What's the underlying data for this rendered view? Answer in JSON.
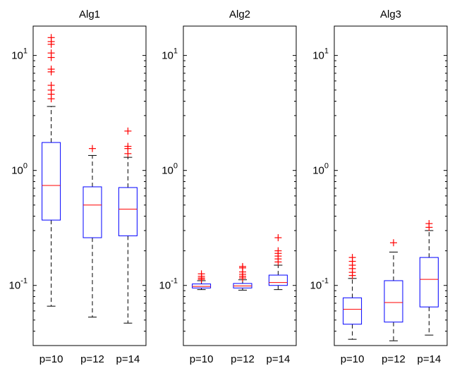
{
  "chart_data": [
    {
      "type": "boxplot",
      "title": "Alg1",
      "yscale": "log",
      "ylim": [
        0.03,
        18
      ],
      "yticks": [
        {
          "base": "10",
          "exp": "-1"
        },
        {
          "base": "10",
          "exp": "0"
        },
        {
          "base": "10",
          "exp": "1"
        }
      ],
      "categories": [
        "p=10",
        "p=12",
        "p=14"
      ],
      "boxes": [
        {
          "whisker_low": 0.066,
          "q1": 0.37,
          "median": 0.74,
          "q3": 1.75,
          "whisker_high": 3.6,
          "outliers": [
            4.2,
            4.6,
            5.0,
            5.5,
            7.2,
            7.6,
            9.6,
            10.5,
            12.5,
            13.2,
            14.3
          ]
        },
        {
          "whisker_low": 0.053,
          "q1": 0.26,
          "median": 0.5,
          "q3": 0.72,
          "whisker_high": 1.35,
          "outliers": [
            1.55
          ]
        },
        {
          "whisker_low": 0.047,
          "q1": 0.27,
          "median": 0.46,
          "q3": 0.71,
          "whisker_high": 1.3,
          "outliers": [
            1.4,
            1.55,
            1.62,
            2.2
          ]
        }
      ]
    },
    {
      "type": "boxplot",
      "title": "Alg2",
      "yscale": "log",
      "ylim": [
        0.03,
        18
      ],
      "yticks": [
        {
          "base": "10",
          "exp": "-1"
        },
        {
          "base": "10",
          "exp": "0"
        },
        {
          "base": "10",
          "exp": "1"
        }
      ],
      "categories": [
        "p=10",
        "p=12",
        "p=14"
      ],
      "boxes": [
        {
          "whisker_low": 0.092,
          "q1": 0.095,
          "median": 0.098,
          "q3": 0.103,
          "whisker_high": 0.11,
          "outliers": [
            0.113,
            0.116,
            0.12,
            0.126
          ]
        },
        {
          "whisker_low": 0.091,
          "q1": 0.095,
          "median": 0.099,
          "q3": 0.104,
          "whisker_high": 0.112,
          "outliers": [
            0.116,
            0.12,
            0.125,
            0.131,
            0.142,
            0.146
          ]
        },
        {
          "whisker_low": 0.092,
          "q1": 0.1,
          "median": 0.106,
          "q3": 0.123,
          "whisker_high": 0.15,
          "outliers": [
            0.16,
            0.17,
            0.18,
            0.19,
            0.2,
            0.26
          ]
        }
      ]
    },
    {
      "type": "boxplot",
      "title": "Alg3",
      "yscale": "log",
      "ylim": [
        0.03,
        18
      ],
      "yticks": [
        {
          "base": "10",
          "exp": "-1"
        },
        {
          "base": "10",
          "exp": "0"
        },
        {
          "base": "10",
          "exp": "1"
        }
      ],
      "categories": [
        "p=10",
        "p=12",
        "p=14"
      ],
      "boxes": [
        {
          "whisker_low": 0.034,
          "q1": 0.046,
          "median": 0.062,
          "q3": 0.078,
          "whisker_high": 0.115,
          "outliers": [
            0.122,
            0.13,
            0.14,
            0.15,
            0.162,
            0.175
          ]
        },
        {
          "whisker_low": 0.033,
          "q1": 0.048,
          "median": 0.071,
          "q3": 0.11,
          "whisker_high": 0.195,
          "outliers": [
            0.235
          ]
        },
        {
          "whisker_low": 0.037,
          "q1": 0.065,
          "median": 0.113,
          "q3": 0.175,
          "whisker_high": 0.3,
          "outliers": [
            0.32,
            0.345
          ]
        }
      ]
    }
  ],
  "colors": {
    "box": "#0000ff",
    "median": "#ff0000",
    "outlier": "#ff0000",
    "whisker": "#000000",
    "axes": "#000000"
  }
}
